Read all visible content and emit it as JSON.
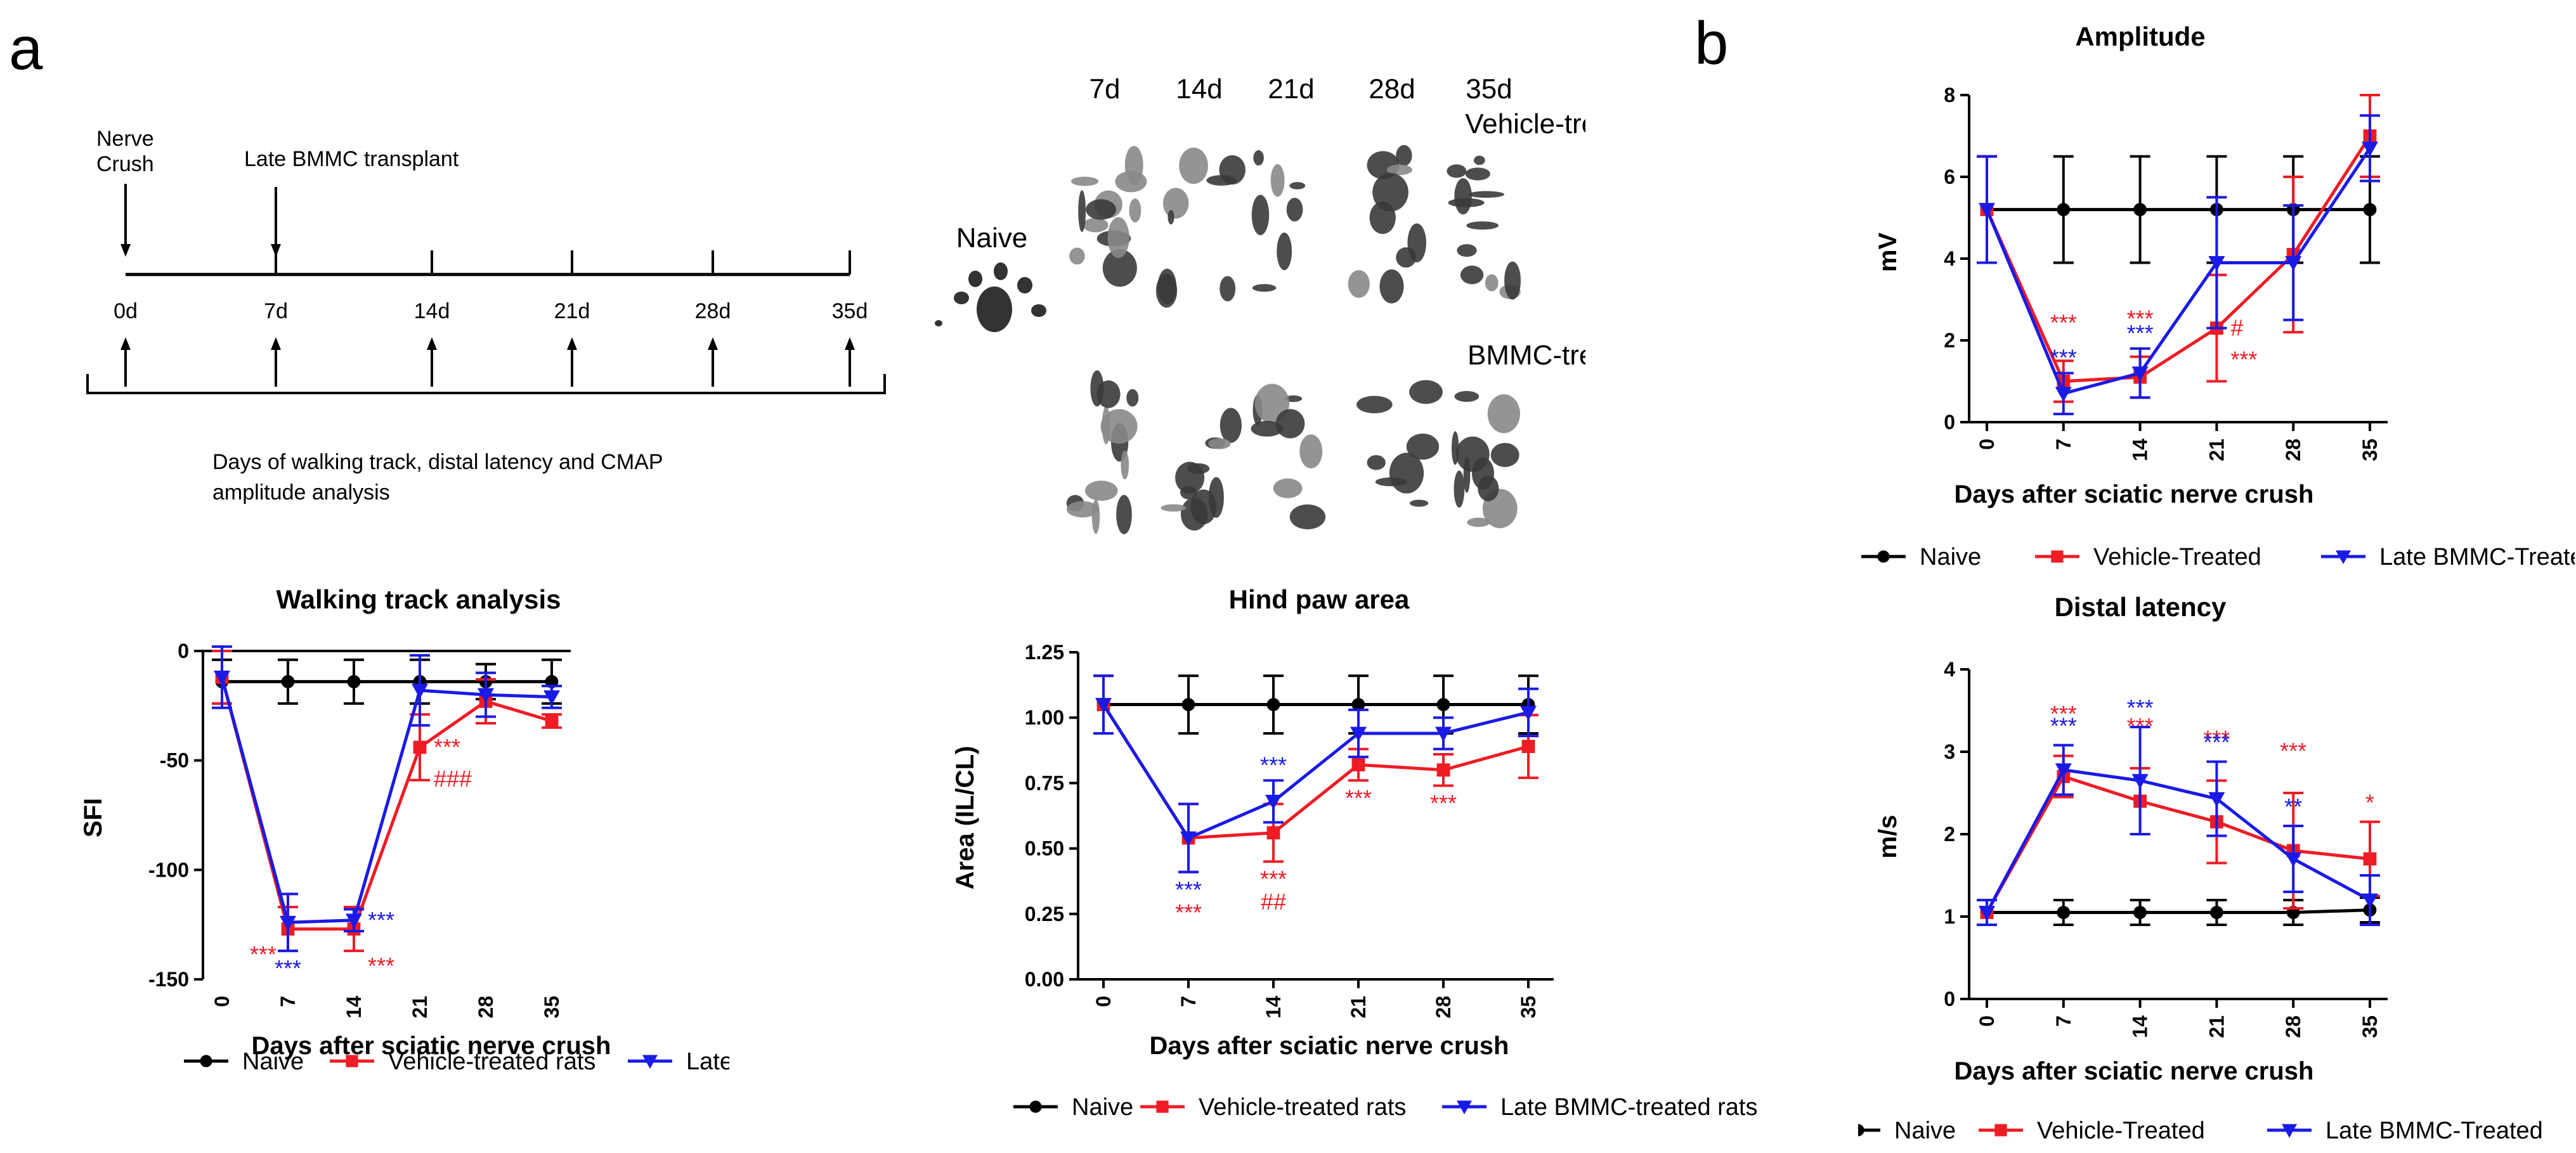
{
  "panels": {
    "a": "a",
    "b": "b"
  },
  "timeline": {
    "nerve_crush": "Nerve\nCrush",
    "transplant": "Late BMMC transplant",
    "ticks": [
      "0d",
      "7d",
      "14d",
      "21d",
      "28d",
      "35d"
    ],
    "caption": "Days of walking track, distal latency and CMAP\namplitude analysis"
  },
  "footprints": {
    "days": [
      "7d",
      "14d",
      "21d",
      "28d",
      "35d"
    ],
    "naive_label": "Naive",
    "vehicle_label": "Vehicle-treated",
    "bmmc_label": "BMMC-treated"
  },
  "colors": {
    "naive": "#000000",
    "vehicle": "#ee1c25",
    "bmmc": "#1a1ae6"
  },
  "chart_data": [
    {
      "id": "walking",
      "type": "line",
      "title": "Walking track analysis",
      "xlabel": "Days after sciatic nerve crush",
      "ylabel": "SFI",
      "categories": [
        "0",
        "7",
        "14",
        "21",
        "28",
        "35"
      ],
      "ylim": [
        -150,
        0
      ],
      "yticks": [
        "0",
        "-50",
        "-100",
        "-150"
      ],
      "series": [
        {
          "name": "Naive",
          "values": [
            -14,
            -14,
            -14,
            -14,
            -14,
            -14
          ],
          "errors": [
            10,
            10,
            10,
            10,
            8,
            10
          ]
        },
        {
          "name": "Vehicle-treated rats",
          "values": [
            -12,
            -127,
            -127,
            -44,
            -23,
            -32
          ],
          "errors": [
            12,
            10,
            10,
            15,
            10,
            3
          ]
        },
        {
          "name": "Late BMMC-treated",
          "values": [
            -12,
            -124,
            -123,
            -18,
            -20,
            -21
          ],
          "errors": [
            14,
            13,
            5,
            16,
            10,
            5
          ]
        }
      ],
      "annotations": [
        {
          "text": "***",
          "series": "vehicle",
          "x": "7",
          "position": "left"
        },
        {
          "text": "***",
          "series": "bmmc",
          "x": "7",
          "position": "below"
        },
        {
          "text": "***",
          "series": "bmmc",
          "x": "14",
          "position": "right"
        },
        {
          "text": "***",
          "series": "vehicle",
          "x": "14",
          "position": "below-right"
        },
        {
          "text": "***",
          "series": "vehicle",
          "x": "21",
          "position": "right"
        },
        {
          "text": "###",
          "series": "vehicle",
          "x": "21",
          "position": "right-below"
        }
      ],
      "legend": [
        "Naive",
        "Vehicle-treated rats",
        "Late BMMC-treated"
      ]
    },
    {
      "id": "hindpaw",
      "type": "line",
      "title": "Hind paw area",
      "xlabel": "Days after sciatic nerve crush",
      "ylabel": "Area (IL/CL)",
      "categories": [
        "0",
        "7",
        "14",
        "21",
        "28",
        "35"
      ],
      "ylim": [
        0,
        1.25
      ],
      "yticks": [
        "0.00",
        "0.25",
        "0.50",
        "0.75",
        "1.00",
        "1.25"
      ],
      "series": [
        {
          "name": "Naive",
          "values": [
            1.05,
            1.05,
            1.05,
            1.05,
            1.05,
            1.05
          ],
          "errors": [
            0.11,
            0.11,
            0.11,
            0.11,
            0.11,
            0.11
          ]
        },
        {
          "name": "Vehicle-treated rats",
          "values": [
            1.05,
            0.54,
            0.56,
            0.82,
            0.8,
            0.89
          ],
          "errors": [
            0.11,
            0.13,
            0.11,
            0.06,
            0.06,
            0.12
          ]
        },
        {
          "name": "Late BMMC-treated rats",
          "values": [
            1.05,
            0.54,
            0.68,
            0.94,
            0.94,
            1.02
          ],
          "errors": [
            0.11,
            0.13,
            0.08,
            0.09,
            0.06,
            0.09
          ]
        }
      ],
      "annotations": [
        {
          "text": "***",
          "series": "bmmc",
          "x": "7",
          "position": "below"
        },
        {
          "text": "***",
          "series": "vehicle",
          "x": "7",
          "position": "below2"
        },
        {
          "text": "***",
          "series": "bmmc",
          "x": "14",
          "position": "above"
        },
        {
          "text": "***",
          "series": "vehicle",
          "x": "14",
          "position": "below"
        },
        {
          "text": "##",
          "series": "vehicle",
          "x": "14",
          "position": "below2"
        },
        {
          "text": "***",
          "series": "vehicle",
          "x": "21",
          "position": "below"
        },
        {
          "text": "***",
          "series": "vehicle",
          "x": "28",
          "position": "below"
        }
      ],
      "legend": [
        "Naive",
        "Vehicle-treated rats",
        "Late BMMC-treated rats"
      ]
    },
    {
      "id": "amplitude",
      "type": "line",
      "title": "Amplitude",
      "xlabel": "Days after sciatic nerve crush",
      "ylabel": "mV",
      "categories": [
        "0",
        "7",
        "14",
        "21",
        "28",
        "35"
      ],
      "ylim": [
        0,
        8
      ],
      "yticks": [
        "0",
        "2",
        "4",
        "6",
        "8"
      ],
      "series": [
        {
          "name": "Naive",
          "values": [
            5.2,
            5.2,
            5.2,
            5.2,
            5.2,
            5.2
          ],
          "errors": [
            1.3,
            1.3,
            1.3,
            1.3,
            1.3,
            1.3
          ]
        },
        {
          "name": "Vehicle-Treated",
          "values": [
            5.2,
            1.0,
            1.1,
            2.3,
            4.1,
            7.0
          ],
          "errors": [
            1.3,
            0.5,
            0.5,
            1.3,
            1.9,
            1.0
          ]
        },
        {
          "name": "Late BMMC-Treated",
          "values": [
            5.2,
            0.7,
            1.2,
            3.9,
            3.9,
            6.7
          ],
          "errors": [
            1.3,
            0.5,
            0.6,
            1.6,
            1.4,
            0.8
          ]
        }
      ],
      "annotations": [
        {
          "text": "***",
          "series": "vehicle",
          "x": "7",
          "position": "above2"
        },
        {
          "text": "***",
          "series": "bmmc",
          "x": "7",
          "position": "above"
        },
        {
          "text": "***",
          "series": "vehicle",
          "x": "14",
          "position": "above2"
        },
        {
          "text": "***",
          "series": "bmmc",
          "x": "14",
          "position": "above"
        },
        {
          "text": "#",
          "series": "vehicle",
          "x": "21",
          "position": "right"
        },
        {
          "text": "***",
          "series": "vehicle",
          "x": "21",
          "position": "right-below"
        }
      ],
      "legend": [
        "Naive",
        "Vehicle-Treated",
        "Late BMMC-Treated"
      ]
    },
    {
      "id": "distal",
      "type": "line",
      "title": "Distal latency",
      "xlabel": "Days after sciatic nerve crush",
      "ylabel": "m/s",
      "categories": [
        "0",
        "7",
        "14",
        "21",
        "28",
        "35"
      ],
      "ylim": [
        0,
        4
      ],
      "yticks": [
        "0",
        "1",
        "2",
        "3",
        "4"
      ],
      "series": [
        {
          "name": "Naive",
          "values": [
            1.05,
            1.05,
            1.05,
            1.05,
            1.05,
            1.08
          ],
          "errors": [
            0.15,
            0.15,
            0.15,
            0.15,
            0.15,
            0.15
          ]
        },
        {
          "name": "Vehicle-Treated",
          "values": [
            1.05,
            2.7,
            2.4,
            2.15,
            1.8,
            1.7
          ],
          "errors": [
            0.15,
            0.25,
            0.4,
            0.5,
            0.7,
            0.45
          ]
        },
        {
          "name": "Late BMMC-Treated",
          "values": [
            1.05,
            2.78,
            2.65,
            2.43,
            1.7,
            1.2
          ],
          "errors": [
            0.15,
            0.3,
            0.65,
            0.45,
            0.4,
            0.3
          ]
        }
      ],
      "annotations": [
        {
          "text": "***",
          "series": "vehicle",
          "x": "7",
          "position": "top2"
        },
        {
          "text": "***",
          "series": "bmmc",
          "x": "7",
          "position": "top1"
        },
        {
          "text": "***",
          "series": "vehicle",
          "x": "14",
          "position": "top2"
        },
        {
          "text": "***",
          "series": "bmmc",
          "x": "14",
          "position": "top1"
        },
        {
          "text": "***",
          "series": "vehicle",
          "x": "21",
          "position": "top2"
        },
        {
          "text": "***",
          "series": "bmmc",
          "x": "21",
          "position": "top1"
        },
        {
          "text": "***",
          "series": "vehicle",
          "x": "28",
          "position": "top2"
        },
        {
          "text": "**",
          "series": "bmmc",
          "x": "28",
          "position": "top1"
        },
        {
          "text": "*",
          "series": "vehicle",
          "x": "35",
          "position": "top1"
        }
      ],
      "legend": [
        "Naive",
        "Vehicle-Treated",
        "Late BMMC-Treated"
      ]
    }
  ]
}
